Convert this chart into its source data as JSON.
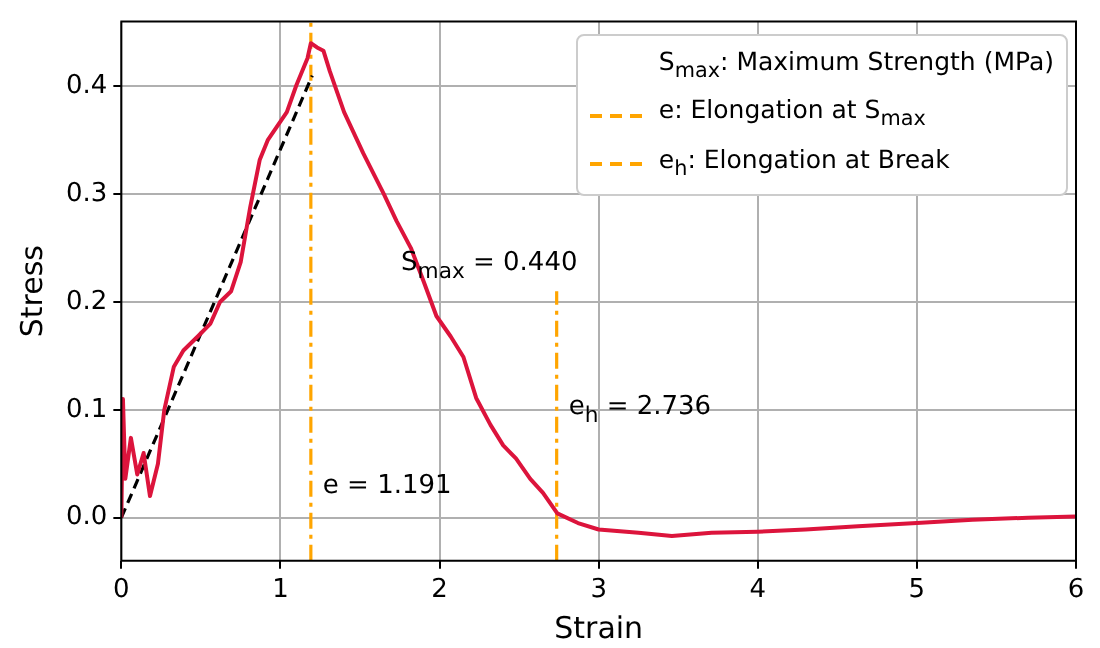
{
  "chart_data": {
    "type": "line",
    "xlabel": "Strain",
    "ylabel": "Stress",
    "xlim": [
      0,
      6
    ],
    "xticks": [
      0,
      1,
      2,
      3,
      4,
      5,
      6
    ],
    "ylim": [
      -0.04,
      0.46
    ],
    "yticks": [
      {
        "value": 0,
        "label": "0.0"
      },
      0.1,
      0.2,
      0.3,
      0.4
    ],
    "grid": true,
    "legend": "top right",
    "legend_title": "S$_{max}$: Maximum Strength (MPa)",
    "series": [
      {
        "color": "#dc143c",
        "line_style": "solid",
        "x": [
          0,
          0.01,
          0.025,
          0.06,
          0.1,
          0.14,
          0.18,
          0.23,
          0.27,
          0.33,
          0.39,
          0.48,
          0.56,
          0.62,
          0.69,
          0.75,
          0.81,
          0.87,
          0.92,
          0.98,
          1.04,
          1.1,
          1.17,
          1.191,
          1.23,
          1.27,
          1.31,
          1.4,
          1.52,
          1.65,
          1.73,
          1.82,
          1.9,
          1.98,
          2.07,
          2.15,
          2.23,
          2.32,
          2.4,
          2.48,
          2.57,
          2.65,
          2.74,
          2.87,
          3.0,
          3.25,
          3.46,
          3.71,
          4.0,
          4.3,
          4.63,
          5.0,
          5.35,
          5.7,
          6.0
        ],
        "values": [
          0,
          0.11,
          0.036,
          0.074,
          0.04,
          0.06,
          0.02,
          0.05,
          0.1,
          0.14,
          0.155,
          0.168,
          0.18,
          0.2,
          0.21,
          0.237,
          0.288,
          0.332,
          0.35,
          0.363,
          0.376,
          0.401,
          0.426,
          0.44,
          0.436,
          0.433,
          0.414,
          0.376,
          0.338,
          0.3,
          0.275,
          0.25,
          0.219,
          0.187,
          0.168,
          0.149,
          0.111,
          0.086,
          0.067,
          0.055,
          0.036,
          0.023,
          0.004,
          -0.005,
          -0.011,
          -0.014,
          -0.017,
          -0.014,
          -0.013,
          -0.011,
          -0.008,
          -0.005,
          -0.002,
          0,
          0.001
        ]
      },
      {
        "color": "#000000",
        "line_style": "dashed",
        "x": [
          0,
          1.2
        ],
        "values": [
          0,
          0.41
        ]
      },
      {
        "name": "e: Elongation at S$_{max}$",
        "color": "#ffa500",
        "line_style": "dashdot",
        "x": [
          1.191,
          1.191
        ],
        "values": [
          -0.04,
          0.46
        ]
      },
      {
        "name": "e$_{h}$: Elongation at Break",
        "color": "#ffa500",
        "line_style": "dashdot",
        "x": [
          2.736,
          2.736
        ],
        "values": [
          -0.04,
          0.21
        ]
      }
    ],
    "annotations": [
      "S$_{max}$ = 0.440",
      {
        "text": "e = 1.191",
        "x": 1.191,
        "y": 0.03
      },
      {
        "text": "e$_{h}$ = 2.736",
        "x": 2.736,
        "y": 0.1
      }
    ]
  }
}
